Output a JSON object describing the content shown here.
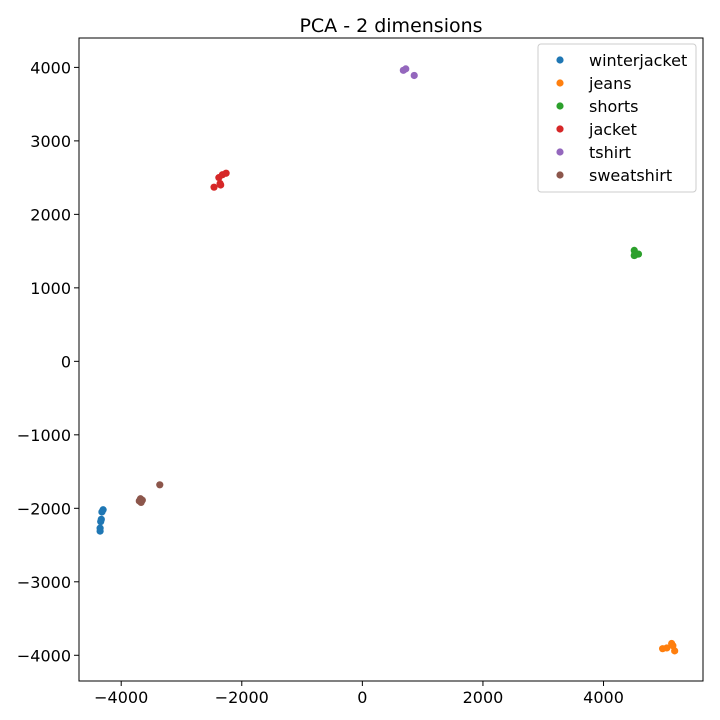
{
  "chart_data": {
    "type": "scatter",
    "title": "PCA - 2 dimensions",
    "xlabel": "",
    "ylabel": "",
    "xlim": [
      -4700,
      5650
    ],
    "ylim": [
      -4350,
      4400
    ],
    "xticks": [
      -4000,
      -2000,
      0,
      2000,
      4000
    ],
    "xtick_labels": [
      "−4000",
      "−2000",
      "0",
      "2000",
      "4000"
    ],
    "yticks": [
      -4000,
      -3000,
      -2000,
      -1000,
      0,
      1000,
      2000,
      3000,
      4000
    ],
    "ytick_labels": [
      "−4000",
      "−3000",
      "−2000",
      "−1000",
      "0",
      "1000",
      "2000",
      "3000",
      "4000"
    ],
    "grid": false,
    "legend_position": "top-right",
    "series": [
      {
        "name": "winterjacket",
        "color": "#1f77b4",
        "points": [
          [
            -4300,
            -2020
          ],
          [
            -4320,
            -2050
          ],
          [
            -4330,
            -2150
          ],
          [
            -4340,
            -2180
          ],
          [
            -4350,
            -2270
          ],
          [
            -4350,
            -2310
          ]
        ]
      },
      {
        "name": "jeans",
        "color": "#ff7f0e",
        "points": [
          [
            4980,
            -3910
          ],
          [
            5050,
            -3900
          ],
          [
            5130,
            -3840
          ],
          [
            5150,
            -3870
          ],
          [
            5180,
            -3940
          ]
        ]
      },
      {
        "name": "shorts",
        "color": "#2ca02c",
        "points": [
          [
            4510,
            1510
          ],
          [
            4520,
            1470
          ],
          [
            4530,
            1450
          ],
          [
            4510,
            1440
          ],
          [
            4580,
            1460
          ]
        ]
      },
      {
        "name": "jacket",
        "color": "#d62728",
        "points": [
          [
            -2460,
            2370
          ],
          [
            -2380,
            2500
          ],
          [
            -2360,
            2420
          ],
          [
            -2350,
            2400
          ],
          [
            -2320,
            2540
          ],
          [
            -2260,
            2560
          ]
        ]
      },
      {
        "name": "tshirt",
        "color": "#9467bd",
        "points": [
          [
            680,
            3960
          ],
          [
            720,
            3980
          ],
          [
            860,
            3890
          ]
        ]
      },
      {
        "name": "sweatshirt",
        "color": "#8c564b",
        "points": [
          [
            -3680,
            -1870
          ],
          [
            -3700,
            -1900
          ],
          [
            -3670,
            -1920
          ],
          [
            -3650,
            -1890
          ],
          [
            -3360,
            -1680
          ]
        ]
      }
    ]
  }
}
